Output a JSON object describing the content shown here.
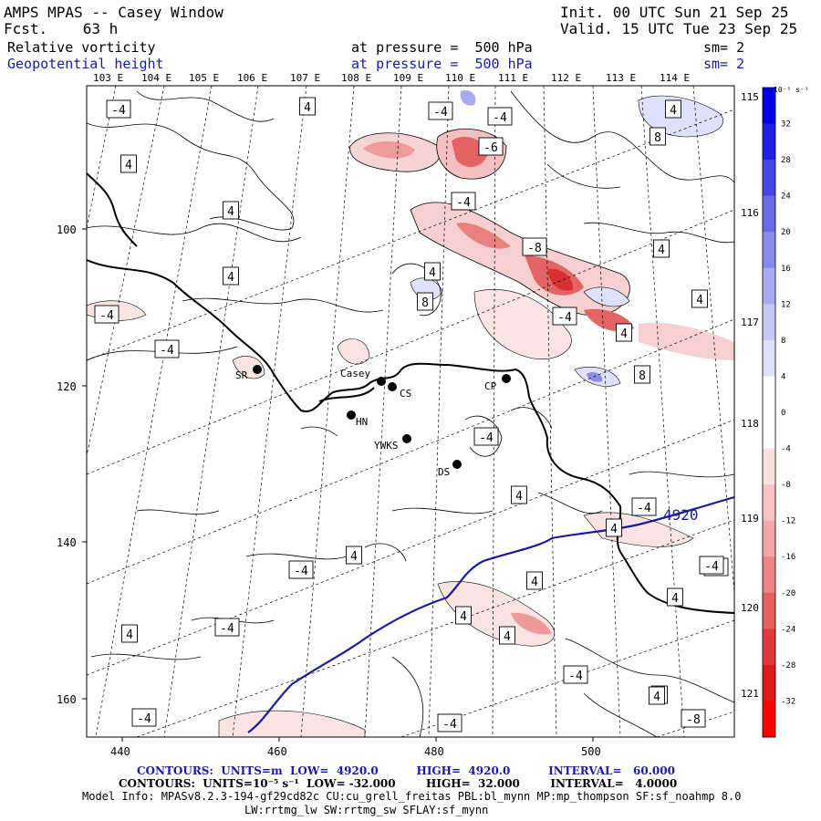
{
  "header": {
    "title": "AMPS MPAS -- Casey Window",
    "forecast": "Fcst.    63 h",
    "init": "Init. 00 UTC Sun 21 Sep 25",
    "valid": "Valid. 15 UTC Tue 23 Sep 25",
    "field1": {
      "name": "Relative vorticity",
      "level": "at pressure =  500 hPa",
      "smooth": "sm= 2"
    },
    "field2": {
      "name": "Geopotential height",
      "level": "at pressure =  500 hPa",
      "smooth": "sm= 2"
    }
  },
  "axes": {
    "x_ticks": [
      "440",
      "460",
      "480",
      "500"
    ],
    "y_ticks": [
      "100",
      "120",
      "140",
      "160"
    ],
    "lon_labels_top": [
      "103 E",
      "104 E",
      "105 E",
      "106 E",
      "107 E",
      "108 E",
      "109 E",
      "110 E",
      "111 E",
      "112 E",
      "113 E",
      "114 E"
    ],
    "lon_labels_right": [
      "115 E",
      "116 E",
      "117 E",
      "118 E",
      "119 E",
      "120 E",
      "121 E"
    ]
  },
  "stations": [
    {
      "label": "SR"
    },
    {
      "label": "Casey"
    },
    {
      "label": "CS"
    },
    {
      "label": "CP"
    },
    {
      "label": "HN"
    },
    {
      "label": "YWKS"
    },
    {
      "label": "DS"
    }
  ],
  "contour_labels": [
    "-4",
    "4",
    "-4",
    "-4",
    "8",
    "4",
    "-6",
    "4",
    "-4",
    "4",
    "-8",
    "4",
    "4",
    "4",
    "-4",
    "8",
    "-4",
    "-4",
    "4",
    "8",
    "4",
    "-4",
    "4",
    "-4",
    "4",
    "-4",
    "4",
    "-4",
    "4",
    "4",
    "4",
    "-4",
    "4",
    "-4",
    "4",
    "-4",
    "-4",
    "-8",
    "4",
    "-4",
    "4"
  ],
  "height_label": "4920",
  "colorbar": {
    "unit": "10⁻⁵ s⁻¹",
    "ticks": [
      "32",
      "28",
      "24",
      "20",
      "16",
      "12",
      "8",
      "4",
      "0",
      "-4",
      "-8",
      "-12",
      "-16",
      "-20",
      "-24",
      "-28",
      "-32"
    ],
    "colors": [
      "#0000e6",
      "#2020e6",
      "#4646e6",
      "#6a6ae6",
      "#8a8aea",
      "#aaaaf0",
      "#c8c8f6",
      "#e0e0fa",
      "#ffffff",
      "#ffffff",
      "#fbe0e0",
      "#f6c4c4",
      "#f2a8a8",
      "#ec8686",
      "#e66060",
      "#e03a3a",
      "#dc1a1a",
      "#ff0000"
    ]
  },
  "footer": {
    "line1": "CONTOURS:  UNITS=m  LOW=  4920.0          HIGH=  4920.0          INTERVAL=   60.000",
    "line2": "CONTOURS:  UNITS=10⁻⁵ s⁻¹  LOW= -32.000        HIGH=  32.000        INTERVAL=   4.0000",
    "line3": "Model Info: MPASv8.2.3-194-gf29cd82c CU:cu_grell_freitas PBL:bl_mynn MP:mp_thompson SF:sf_noahmp 8.0",
    "line4": "LW:rrtmg_lw SW:rrtmg_sw SFLAY:sf_mynn"
  }
}
